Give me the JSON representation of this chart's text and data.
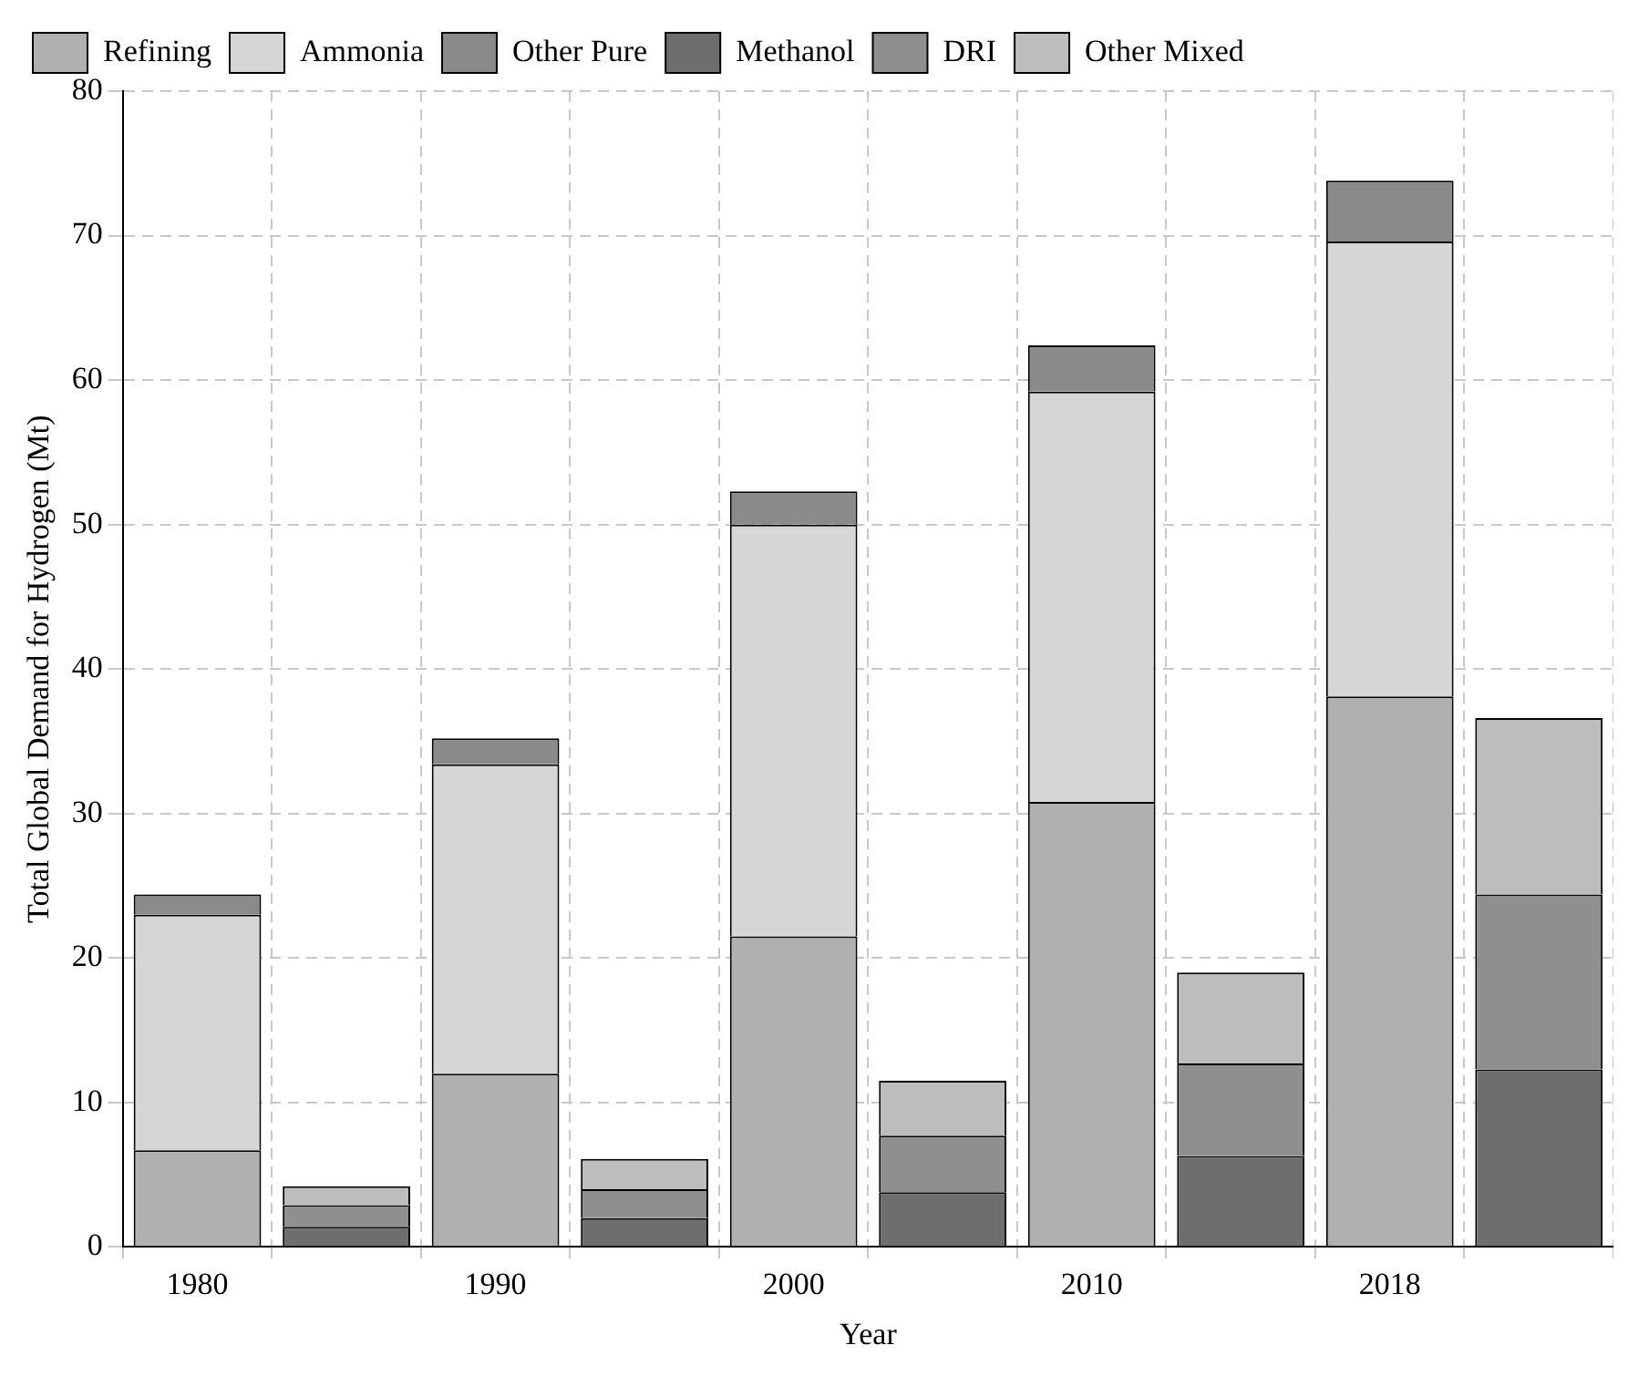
{
  "chart_data": {
    "type": "bar",
    "xlabel": "Year",
    "ylabel": "Total Global Demand for Hydrogen (Mt)",
    "categories": [
      "1980",
      null,
      "1990",
      null,
      "2000",
      null,
      "2010",
      null,
      "2018",
      null
    ],
    "stacked": true,
    "ylim": [
      0,
      80
    ],
    "yticks": [
      0,
      10,
      20,
      30,
      40,
      50,
      60,
      70,
      80
    ],
    "grid": true,
    "legend": "top left",
    "series": [
      {
        "name": "Refining",
        "color": "#b0b0b0",
        "values": [
          6.7,
          null,
          12,
          null,
          21.5,
          null,
          30.8,
          null,
          38.1,
          null
        ]
      },
      {
        "name": "Ammonia",
        "color": "#d6d6d6",
        "values": [
          16.3,
          null,
          21.4,
          null,
          28.5,
          null,
          28.4,
          null,
          31.5,
          null
        ]
      },
      {
        "name": "Other Pure",
        "color": "#8a8a8a",
        "values": [
          1.4,
          null,
          1.8,
          null,
          2.3,
          null,
          3.2,
          null,
          4.2,
          null
        ]
      },
      {
        "name": "Methanol",
        "color": "#6e6e6e",
        "values": [
          null,
          1.4,
          null,
          2.0,
          null,
          3.8,
          null,
          6.3,
          null,
          12.3
        ]
      },
      {
        "name": "DRI",
        "color": "#8f8f8f",
        "values": [
          null,
          1.5,
          null,
          2.0,
          null,
          3.9,
          null,
          6.4,
          null,
          12.1
        ]
      },
      {
        "name": "Other Mixed",
        "color": "#bdbdbd",
        "values": [
          null,
          1.3,
          null,
          2.1,
          null,
          3.8,
          null,
          6.3,
          null,
          12.2
        ]
      }
    ]
  }
}
